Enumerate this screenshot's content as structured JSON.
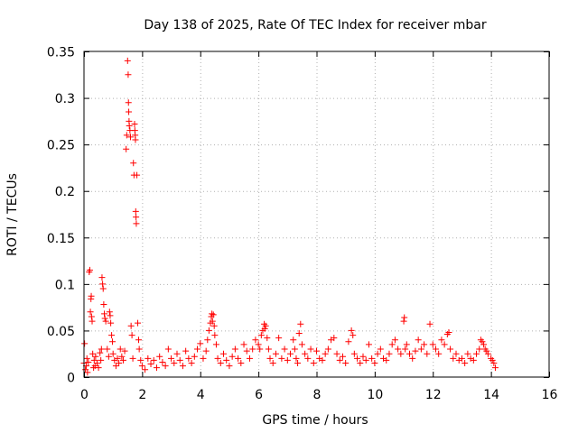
{
  "chart_data": {
    "type": "scatter",
    "title": "Day 138 of 2025, Rate Of TEC Index for receiver mbar",
    "xlabel": "GPS time / hours",
    "ylabel": "ROTI / TECUs",
    "xlim": [
      0,
      16
    ],
    "ylim": [
      0,
      0.35
    ],
    "xticks": [
      0,
      2,
      4,
      6,
      8,
      10,
      12,
      14,
      16
    ],
    "xtick_labels": [
      "0",
      "2",
      "4",
      "6",
      "8",
      "10",
      "12",
      "14",
      "16"
    ],
    "yticks": [
      0,
      0.05,
      0.1,
      0.15,
      0.2,
      0.25,
      0.3,
      0.35
    ],
    "ytick_labels": [
      "0",
      "0.05",
      "0.1",
      "0.15",
      "0.2",
      "0.25",
      "0.3",
      "0.35"
    ],
    "grid": true,
    "marker": "+",
    "marker_color": "#ff0000",
    "series": [
      {
        "name": "ROTI",
        "points": [
          [
            0.0,
            0.015
          ],
          [
            0.02,
            0.036
          ],
          [
            0.05,
            0.008
          ],
          [
            0.08,
            0.012
          ],
          [
            0.1,
            0.02
          ],
          [
            0.12,
            0.005
          ],
          [
            0.15,
            0.016
          ],
          [
            0.18,
            0.113
          ],
          [
            0.2,
            0.115
          ],
          [
            0.22,
            0.07
          ],
          [
            0.24,
            0.084
          ],
          [
            0.25,
            0.087
          ],
          [
            0.26,
            0.065
          ],
          [
            0.28,
            0.06
          ],
          [
            0.3,
            0.025
          ],
          [
            0.33,
            0.01
          ],
          [
            0.35,
            0.018
          ],
          [
            0.38,
            0.012
          ],
          [
            0.4,
            0.022
          ],
          [
            0.45,
            0.015
          ],
          [
            0.5,
            0.01
          ],
          [
            0.55,
            0.026
          ],
          [
            0.58,
            0.018
          ],
          [
            0.6,
            0.03
          ],
          [
            0.62,
            0.107
          ],
          [
            0.64,
            0.1
          ],
          [
            0.66,
            0.095
          ],
          [
            0.68,
            0.078
          ],
          [
            0.7,
            0.068
          ],
          [
            0.72,
            0.063
          ],
          [
            0.75,
            0.06
          ],
          [
            0.8,
            0.03
          ],
          [
            0.85,
            0.022
          ],
          [
            0.88,
            0.07
          ],
          [
            0.9,
            0.066
          ],
          [
            0.92,
            0.058
          ],
          [
            0.95,
            0.045
          ],
          [
            0.98,
            0.038
          ],
          [
            1.0,
            0.025
          ],
          [
            1.05,
            0.018
          ],
          [
            1.1,
            0.012
          ],
          [
            1.15,
            0.02
          ],
          [
            1.2,
            0.015
          ],
          [
            1.25,
            0.03
          ],
          [
            1.3,
            0.022
          ],
          [
            1.35,
            0.018
          ],
          [
            1.4,
            0.028
          ],
          [
            1.45,
            0.245
          ],
          [
            1.47,
            0.26
          ],
          [
            1.5,
            0.34
          ],
          [
            1.52,
            0.325
          ],
          [
            1.53,
            0.295
          ],
          [
            1.54,
            0.285
          ],
          [
            1.55,
            0.275
          ],
          [
            1.56,
            0.27
          ],
          [
            1.58,
            0.265
          ],
          [
            1.6,
            0.258
          ],
          [
            1.62,
            0.055
          ],
          [
            1.65,
            0.045
          ],
          [
            1.68,
            0.02
          ],
          [
            1.7,
            0.23
          ],
          [
            1.72,
            0.217
          ],
          [
            1.74,
            0.272
          ],
          [
            1.75,
            0.265
          ],
          [
            1.76,
            0.26
          ],
          [
            1.77,
            0.255
          ],
          [
            1.78,
            0.178
          ],
          [
            1.79,
            0.172
          ],
          [
            1.8,
            0.165
          ],
          [
            1.82,
            0.217
          ],
          [
            1.85,
            0.058
          ],
          [
            1.88,
            0.04
          ],
          [
            1.9,
            0.03
          ],
          [
            1.95,
            0.018
          ],
          [
            2.0,
            0.012
          ],
          [
            2.1,
            0.008
          ],
          [
            2.2,
            0.02
          ],
          [
            2.3,
            0.014
          ],
          [
            2.4,
            0.018
          ],
          [
            2.5,
            0.01
          ],
          [
            2.6,
            0.022
          ],
          [
            2.7,
            0.016
          ],
          [
            2.8,
            0.012
          ],
          [
            2.9,
            0.03
          ],
          [
            3.0,
            0.02
          ],
          [
            3.1,
            0.015
          ],
          [
            3.2,
            0.025
          ],
          [
            3.3,
            0.018
          ],
          [
            3.4,
            0.012
          ],
          [
            3.5,
            0.028
          ],
          [
            3.6,
            0.02
          ],
          [
            3.7,
            0.015
          ],
          [
            3.8,
            0.022
          ],
          [
            3.9,
            0.03
          ],
          [
            4.0,
            0.036
          ],
          [
            4.1,
            0.02
          ],
          [
            4.2,
            0.028
          ],
          [
            4.25,
            0.04
          ],
          [
            4.3,
            0.05
          ],
          [
            4.35,
            0.058
          ],
          [
            4.38,
            0.065
          ],
          [
            4.4,
            0.068
          ],
          [
            4.42,
            0.06
          ],
          [
            4.45,
            0.067
          ],
          [
            4.48,
            0.055
          ],
          [
            4.5,
            0.045
          ],
          [
            4.55,
            0.035
          ],
          [
            4.6,
            0.02
          ],
          [
            4.7,
            0.015
          ],
          [
            4.8,
            0.025
          ],
          [
            4.9,
            0.018
          ],
          [
            5.0,
            0.012
          ],
          [
            5.1,
            0.022
          ],
          [
            5.2,
            0.03
          ],
          [
            5.3,
            0.02
          ],
          [
            5.4,
            0.015
          ],
          [
            5.5,
            0.035
          ],
          [
            5.6,
            0.028
          ],
          [
            5.7,
            0.02
          ],
          [
            5.8,
            0.03
          ],
          [
            5.9,
            0.04
          ],
          [
            6.0,
            0.035
          ],
          [
            6.05,
            0.03
          ],
          [
            6.1,
            0.045
          ],
          [
            6.15,
            0.05
          ],
          [
            6.2,
            0.057
          ],
          [
            6.22,
            0.052
          ],
          [
            6.25,
            0.055
          ],
          [
            6.3,
            0.042
          ],
          [
            6.35,
            0.03
          ],
          [
            6.4,
            0.02
          ],
          [
            6.5,
            0.015
          ],
          [
            6.6,
            0.025
          ],
          [
            6.7,
            0.042
          ],
          [
            6.8,
            0.02
          ],
          [
            6.9,
            0.03
          ],
          [
            7.0,
            0.018
          ],
          [
            7.1,
            0.025
          ],
          [
            7.2,
            0.04
          ],
          [
            7.25,
            0.03
          ],
          [
            7.3,
            0.02
          ],
          [
            7.35,
            0.015
          ],
          [
            7.4,
            0.047
          ],
          [
            7.45,
            0.057
          ],
          [
            7.5,
            0.035
          ],
          [
            7.6,
            0.025
          ],
          [
            7.7,
            0.02
          ],
          [
            7.8,
            0.03
          ],
          [
            7.9,
            0.015
          ],
          [
            8.0,
            0.028
          ],
          [
            8.1,
            0.02
          ],
          [
            8.2,
            0.018
          ],
          [
            8.3,
            0.025
          ],
          [
            8.4,
            0.03
          ],
          [
            8.5,
            0.04
          ],
          [
            8.6,
            0.042
          ],
          [
            8.7,
            0.025
          ],
          [
            8.8,
            0.018
          ],
          [
            8.9,
            0.022
          ],
          [
            9.0,
            0.015
          ],
          [
            9.1,
            0.038
          ],
          [
            9.2,
            0.05
          ],
          [
            9.25,
            0.045
          ],
          [
            9.3,
            0.025
          ],
          [
            9.4,
            0.02
          ],
          [
            9.5,
            0.015
          ],
          [
            9.6,
            0.022
          ],
          [
            9.7,
            0.018
          ],
          [
            9.8,
            0.035
          ],
          [
            9.9,
            0.02
          ],
          [
            10.0,
            0.015
          ],
          [
            10.1,
            0.025
          ],
          [
            10.2,
            0.03
          ],
          [
            10.3,
            0.02
          ],
          [
            10.4,
            0.018
          ],
          [
            10.5,
            0.025
          ],
          [
            10.6,
            0.035
          ],
          [
            10.7,
            0.04
          ],
          [
            10.8,
            0.03
          ],
          [
            10.9,
            0.025
          ],
          [
            11.0,
            0.06
          ],
          [
            11.02,
            0.064
          ],
          [
            11.05,
            0.03
          ],
          [
            11.1,
            0.035
          ],
          [
            11.2,
            0.025
          ],
          [
            11.3,
            0.02
          ],
          [
            11.4,
            0.028
          ],
          [
            11.5,
            0.04
          ],
          [
            11.6,
            0.03
          ],
          [
            11.7,
            0.035
          ],
          [
            11.8,
            0.025
          ],
          [
            11.9,
            0.057
          ],
          [
            12.0,
            0.035
          ],
          [
            12.1,
            0.03
          ],
          [
            12.2,
            0.025
          ],
          [
            12.3,
            0.04
          ],
          [
            12.4,
            0.035
          ],
          [
            12.5,
            0.046
          ],
          [
            12.55,
            0.048
          ],
          [
            12.6,
            0.03
          ],
          [
            12.7,
            0.02
          ],
          [
            12.8,
            0.025
          ],
          [
            12.9,
            0.018
          ],
          [
            13.0,
            0.02
          ],
          [
            13.1,
            0.015
          ],
          [
            13.2,
            0.025
          ],
          [
            13.3,
            0.02
          ],
          [
            13.4,
            0.018
          ],
          [
            13.5,
            0.025
          ],
          [
            13.6,
            0.03
          ],
          [
            13.65,
            0.04
          ],
          [
            13.7,
            0.038
          ],
          [
            13.75,
            0.035
          ],
          [
            13.8,
            0.03
          ],
          [
            13.85,
            0.028
          ],
          [
            13.9,
            0.025
          ],
          [
            14.0,
            0.02
          ],
          [
            14.05,
            0.018
          ],
          [
            14.1,
            0.015
          ],
          [
            14.15,
            0.01
          ]
        ]
      }
    ]
  }
}
